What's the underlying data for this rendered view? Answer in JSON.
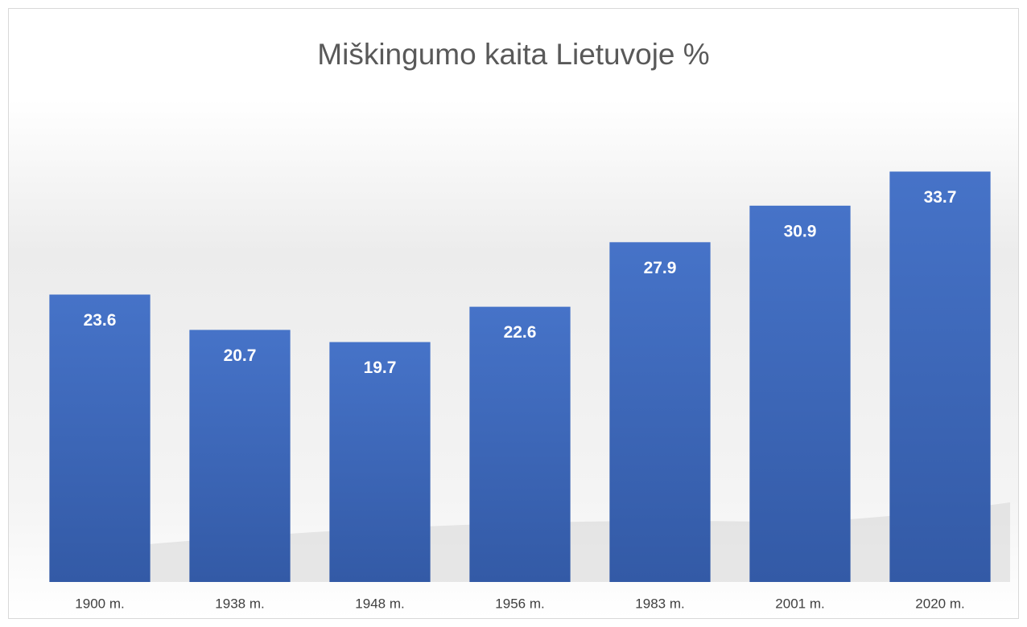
{
  "chart_data": {
    "type": "bar",
    "title": "Miškingumo kaita Lietuvoje %",
    "categories": [
      "1900 m.",
      "1938 m.",
      "1948 m.",
      "1956 m.",
      "1983 m.",
      "2001 m.",
      "2020 m."
    ],
    "values": [
      23.6,
      20.7,
      19.7,
      22.6,
      27.9,
      30.9,
      33.7
    ],
    "color": "#4472c4",
    "ylim": [
      0,
      40
    ],
    "grid": false
  }
}
